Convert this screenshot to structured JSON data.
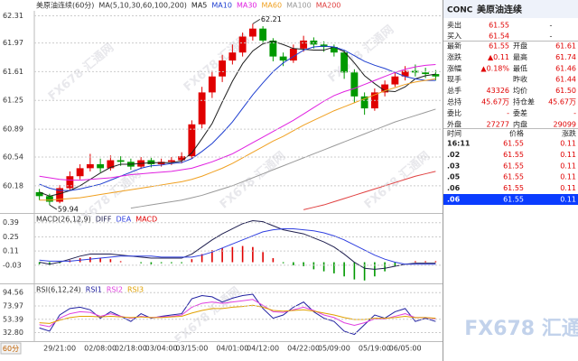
{
  "chart_data": [
    {
      "type": "candlestick",
      "title": "美原油连续(60分)",
      "legend_title": "MA(5,10,30,60,100,200)",
      "categories": [
        null,
        null,
        "29/21:00",
        null,
        null,
        null,
        "02/08:00",
        null,
        null,
        "02/18:00",
        null,
        null,
        "03/04:00",
        null,
        null,
        "03/15:00",
        null,
        null,
        null,
        "04/01:00",
        null,
        null,
        "04/12:00",
        null,
        null,
        null,
        "04/22:00",
        null,
        null,
        "05/09:00",
        null,
        null,
        null,
        "05/19:00",
        null,
        null,
        "06/05:00",
        null,
        null,
        null
      ],
      "open": [
        60.1,
        60.05,
        59.98,
        60.15,
        60.3,
        60.4,
        60.45,
        60.4,
        60.5,
        60.48,
        60.42,
        60.5,
        60.45,
        60.48,
        60.5,
        60.55,
        60.95,
        61.35,
        61.55,
        61.75,
        61.85,
        62.05,
        62.15,
        62.0,
        61.8,
        61.75,
        61.9,
        62.0,
        61.95,
        61.92,
        61.85,
        61.6,
        61.3,
        61.15,
        61.35,
        61.45,
        61.55,
        61.62,
        61.6,
        61.58
      ],
      "high": [
        60.14,
        60.08,
        60.19,
        60.36,
        60.45,
        60.58,
        60.52,
        60.56,
        60.55,
        60.52,
        60.54,
        60.53,
        60.52,
        60.54,
        60.6,
        61.0,
        61.42,
        61.62,
        61.82,
        61.95,
        62.1,
        62.21,
        62.18,
        62.03,
        61.85,
        61.95,
        62.06,
        62.04,
        61.99,
        61.95,
        61.88,
        61.64,
        61.35,
        61.4,
        61.5,
        61.6,
        61.68,
        61.7,
        61.66,
        61.63
      ],
      "low": [
        60.0,
        59.94,
        59.96,
        60.12,
        60.26,
        60.36,
        60.35,
        60.37,
        60.43,
        60.38,
        60.39,
        60.41,
        60.42,
        60.44,
        60.46,
        60.52,
        60.9,
        61.28,
        61.48,
        61.7,
        61.8,
        62.0,
        61.95,
        61.74,
        61.68,
        61.72,
        61.86,
        61.9,
        61.86,
        61.8,
        61.52,
        61.22,
        61.07,
        61.12,
        61.3,
        61.42,
        61.5,
        61.55,
        61.53,
        61.5
      ],
      "close": [
        60.05,
        59.98,
        60.15,
        60.3,
        60.4,
        60.45,
        60.4,
        60.5,
        60.48,
        60.42,
        60.5,
        60.45,
        60.48,
        60.5,
        60.55,
        60.95,
        61.35,
        61.55,
        61.75,
        61.85,
        62.05,
        62.15,
        62.0,
        61.8,
        61.75,
        61.9,
        62.0,
        61.95,
        61.92,
        61.85,
        61.6,
        61.3,
        61.15,
        61.35,
        61.45,
        61.55,
        61.62,
        61.6,
        61.58,
        61.55
      ],
      "up_color": "#e00000",
      "down_color": "#009900",
      "series": [
        {
          "name": "MA5",
          "color": "#202020",
          "values": [
            60.1,
            60.05,
            60.08,
            60.12,
            60.18,
            60.26,
            60.34,
            60.41,
            60.45,
            60.45,
            60.46,
            60.47,
            60.47,
            60.47,
            60.49,
            60.59,
            60.77,
            60.96,
            61.23,
            61.49,
            61.71,
            61.87,
            61.96,
            61.99,
            61.95,
            61.9,
            61.89,
            61.88,
            61.88,
            61.92,
            61.86,
            61.72,
            61.56,
            61.46,
            61.37,
            61.36,
            61.42,
            61.52,
            61.56,
            61.58
          ]
        },
        {
          "name": "MA10",
          "color": "#1f3fd0",
          "values": [
            60.2,
            60.15,
            60.12,
            60.12,
            60.14,
            60.17,
            60.2,
            60.25,
            60.3,
            60.35,
            60.4,
            60.43,
            60.44,
            60.46,
            60.47,
            60.52,
            60.61,
            60.71,
            60.84,
            60.98,
            61.15,
            61.32,
            61.47,
            61.61,
            61.72,
            61.8,
            61.88,
            61.92,
            61.93,
            61.92,
            61.88,
            61.81,
            61.74,
            61.69,
            61.65,
            61.6,
            61.55,
            61.52,
            61.5,
            61.5
          ]
        },
        {
          "name": "MA30",
          "color": "#e020e0",
          "values": [
            60.3,
            60.28,
            60.26,
            60.25,
            60.25,
            60.26,
            60.27,
            60.28,
            60.3,
            60.32,
            60.33,
            60.34,
            60.35,
            60.36,
            60.38,
            60.4,
            60.44,
            60.48,
            60.53,
            60.58,
            60.65,
            60.72,
            60.79,
            60.86,
            60.93,
            61.0,
            61.08,
            61.16,
            61.24,
            61.31,
            61.36,
            61.4,
            61.45,
            61.5,
            61.55,
            61.6,
            61.64,
            61.67,
            61.69,
            61.7
          ]
        },
        {
          "name": "MA60",
          "color": "#f0a020",
          "values": [
            60.0,
            60.0,
            60.01,
            60.02,
            60.03,
            60.05,
            60.07,
            60.09,
            60.11,
            60.13,
            60.15,
            60.17,
            60.19,
            60.21,
            60.23,
            60.26,
            60.3,
            60.35,
            60.4,
            60.46,
            60.53,
            60.6,
            60.67,
            60.74,
            60.8,
            60.87,
            60.94,
            61.0,
            61.06,
            61.12,
            61.17,
            61.22,
            61.27,
            61.32,
            61.37,
            61.41,
            61.45,
            61.48,
            61.5,
            61.52
          ]
        },
        {
          "name": "MA100",
          "color": "#999999",
          "values": [
            null,
            null,
            null,
            null,
            null,
            null,
            null,
            null,
            null,
            59.9,
            59.92,
            59.94,
            59.96,
            59.98,
            60.0,
            60.03,
            60.06,
            60.1,
            60.14,
            60.18,
            60.23,
            60.28,
            60.33,
            60.38,
            60.43,
            60.48,
            60.53,
            60.58,
            60.63,
            60.68,
            60.73,
            60.78,
            60.83,
            60.88,
            60.93,
            60.98,
            61.02,
            61.06,
            61.1,
            61.14
          ]
        },
        {
          "name": "MA200",
          "color": "#e04040",
          "values": [
            null,
            null,
            null,
            null,
            null,
            null,
            null,
            null,
            null,
            null,
            null,
            null,
            null,
            null,
            null,
            null,
            null,
            null,
            null,
            null,
            null,
            null,
            null,
            null,
            null,
            null,
            59.88,
            59.91,
            59.94,
            59.98,
            60.02,
            60.06,
            60.1,
            60.14,
            60.18,
            60.22,
            60.26,
            60.3,
            60.33,
            60.36
          ]
        }
      ],
      "annotations": [
        62.21,
        59.94
      ],
      "ylim": [
        59.85,
        62.35
      ],
      "yticks": [
        62.31,
        61.97,
        61.61,
        61.25,
        60.89,
        60.54,
        60.18
      ],
      "grid": true
    },
    {
      "type": "combo",
      "title": "MACD(26,12,9)",
      "series": [
        {
          "name": "DIFF",
          "color": "#202050",
          "values": [
            0,
            -0.02,
            0.0,
            0.03,
            0.06,
            0.08,
            0.08,
            0.08,
            0.07,
            0.06,
            0.05,
            0.04,
            0.04,
            0.04,
            0.04,
            0.08,
            0.15,
            0.22,
            0.28,
            0.33,
            0.38,
            0.41,
            0.4,
            0.36,
            0.32,
            0.3,
            0.28,
            0.24,
            0.2,
            0.15,
            0.08,
            0.0,
            -0.06,
            -0.07,
            -0.06,
            -0.04,
            -0.02,
            -0.01,
            -0.01,
            -0.01
          ]
        },
        {
          "name": "DEA",
          "color": "#3040e0",
          "values": [
            0.02,
            0.01,
            0.01,
            0.01,
            0.02,
            0.03,
            0.04,
            0.05,
            0.06,
            0.06,
            0.06,
            0.06,
            0.05,
            0.05,
            0.05,
            0.05,
            0.07,
            0.1,
            0.14,
            0.18,
            0.22,
            0.26,
            0.3,
            0.32,
            0.33,
            0.33,
            0.32,
            0.31,
            0.29,
            0.26,
            0.22,
            0.17,
            0.12,
            0.07,
            0.03,
            0.0,
            -0.02,
            -0.02,
            -0.02,
            -0.02
          ]
        },
        {
          "name": "MACD",
          "kind": "bar",
          "color": "#e00000",
          "negative_color": "#009900",
          "values": [
            -0.02,
            -0.03,
            -0.01,
            0.02,
            0.04,
            0.05,
            0.04,
            0.03,
            0.01,
            0,
            -0.01,
            -0.02,
            -0.01,
            -0.01,
            -0.01,
            0.03,
            0.08,
            0.12,
            0.14,
            0.15,
            0.16,
            0.15,
            0.1,
            0.04,
            -0.01,
            -0.03,
            -0.04,
            -0.07,
            -0.09,
            -0.11,
            -0.14,
            -0.17,
            -0.18,
            -0.14,
            -0.09,
            -0.04,
            0,
            0.01,
            0.01,
            0.01
          ]
        }
      ],
      "ylim": [
        -0.2,
        0.45
      ],
      "yticks": [
        0.39,
        0.25,
        0.11,
        -0.03
      ],
      "grid": true
    },
    {
      "type": "line",
      "title": "RSI(6,12,24)",
      "series": [
        {
          "name": "RSI1",
          "color": "#2020a0",
          "values": [
            40,
            35,
            60,
            70,
            72,
            68,
            55,
            65,
            58,
            50,
            62,
            55,
            58,
            60,
            62,
            85,
            90,
            88,
            80,
            86,
            90,
            92,
            70,
            55,
            60,
            72,
            80,
            65,
            55,
            50,
            35,
            30,
            45,
            60,
            55,
            65,
            70,
            50,
            55,
            50
          ]
        },
        {
          "name": "RSI2",
          "color": "#e040e0",
          "values": [
            45,
            42,
            55,
            62,
            65,
            64,
            58,
            62,
            58,
            55,
            58,
            56,
            57,
            58,
            60,
            72,
            78,
            80,
            78,
            80,
            82,
            84,
            75,
            65,
            64,
            68,
            72,
            67,
            60,
            56,
            48,
            44,
            48,
            54,
            54,
            58,
            62,
            56,
            56,
            54
          ]
        },
        {
          "name": "RSI3",
          "color": "#e0a000",
          "values": [
            48,
            47,
            52,
            56,
            58,
            58,
            57,
            58,
            57,
            56,
            57,
            56,
            56,
            57,
            58,
            63,
            67,
            70,
            70,
            72,
            73,
            75,
            72,
            67,
            66,
            67,
            68,
            66,
            63,
            60,
            56,
            53,
            53,
            55,
            55,
            56,
            58,
            56,
            56,
            55
          ]
        }
      ],
      "ylim": [
        21,
        106
      ],
      "yticks": [
        94.56,
        73.97,
        53.39,
        {
          "value": 32.8,
          "label": "32.80"
        }
      ],
      "grid": true
    }
  ],
  "period_button": "60分",
  "watermark": "FX678 汇通网",
  "quote": {
    "code": "CONC",
    "name": "美原油连续",
    "bid_ask": [
      [
        "卖出",
        "61.55",
        "-"
      ],
      [
        "买入",
        "61.54",
        "-"
      ]
    ],
    "rows": [
      [
        "最新",
        "61.55",
        "开盘",
        "61.61"
      ],
      [
        "涨跌",
        "▲0.11",
        "最高",
        "61.74"
      ],
      [
        "涨幅",
        "▲0.18%",
        "最低",
        "61.46"
      ],
      [
        "现手",
        null,
        "昨收",
        "61.44"
      ],
      [
        "总手",
        "43326",
        "均价",
        "61.50"
      ],
      [
        "总持",
        "45.67万",
        "持仓差",
        "45.67万"
      ],
      [
        "委比",
        "-",
        "委差",
        "-"
      ],
      [
        "外盘",
        "27277",
        "内盘",
        "29099"
      ]
    ]
  },
  "trades": {
    "headers": [
      "时间",
      "价格",
      "涨跌"
    ],
    "rows": [
      [
        "16:11",
        "61.55",
        "0.11"
      ],
      [
        ".02",
        "61.55",
        "0.11"
      ],
      [
        ".03",
        "61.55",
        "0.11"
      ],
      [
        ".05",
        "61.55",
        "0.11"
      ],
      [
        ".06",
        "61.55",
        "0.11"
      ],
      [
        ".06",
        "61.55",
        "0.11"
      ]
    ]
  }
}
